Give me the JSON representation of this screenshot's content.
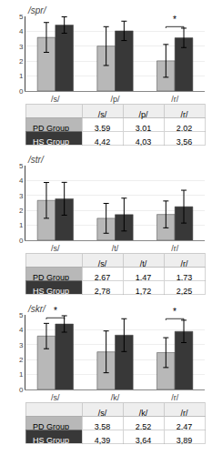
{
  "chart_data": [
    {
      "type": "bar",
      "title": "/spr/",
      "categories": [
        "/s/",
        "/p/",
        "/r/"
      ],
      "series": [
        {
          "name": "PD Group",
          "color": "#b8b8b8",
          "values": [
            3.59,
            3.01,
            2.02
          ],
          "errors": [
            1.0,
            1.3,
            1.1
          ],
          "value_labels": [
            "3,59",
            "3,01",
            "2,02"
          ]
        },
        {
          "name": "HS Group",
          "color": "#383838",
          "values": [
            4.42,
            4.03,
            3.56
          ],
          "errors": [
            0.55,
            0.65,
            0.65
          ],
          "value_labels": [
            "4,42",
            "4,03",
            "3,56"
          ]
        }
      ],
      "annotations": [
        {
          "category": "/r/",
          "text": "*"
        }
      ],
      "ylim": [
        0,
        5
      ],
      "yticks": [
        0,
        1,
        2,
        3,
        4,
        5
      ],
      "grid": true
    },
    {
      "type": "bar",
      "title": "/str/",
      "categories": [
        "/s/",
        "/t/",
        "/r/"
      ],
      "series": [
        {
          "name": "PD Group",
          "color": "#b8b8b8",
          "values": [
            2.67,
            1.47,
            1.73
          ],
          "errors": [
            1.2,
            1.0,
            0.9
          ],
          "value_labels": [
            "2,67",
            "1,47",
            "1,73"
          ]
        },
        {
          "name": "HS Group",
          "color": "#383838",
          "values": [
            2.78,
            1.72,
            2.25
          ],
          "errors": [
            1.1,
            1.1,
            1.1
          ],
          "value_labels": [
            "2,78",
            "1,72",
            "2,25"
          ]
        }
      ],
      "annotations": [],
      "ylim": [
        0,
        5
      ],
      "yticks": [
        0,
        1,
        2,
        3,
        4,
        5
      ],
      "grid": true
    },
    {
      "type": "bar",
      "title": "/skr/",
      "categories": [
        "/s/",
        "/k/",
        "/r/"
      ],
      "series": [
        {
          "name": "PD Group",
          "color": "#b8b8b8",
          "values": [
            3.58,
            2.52,
            2.47
          ],
          "errors": [
            0.85,
            1.4,
            1.0
          ],
          "value_labels": [
            "3,58",
            "2,52",
            "2,47"
          ]
        },
        {
          "name": "HS Group",
          "color": "#383838",
          "values": [
            4.39,
            3.64,
            3.89
          ],
          "errors": [
            0.55,
            1.1,
            0.75
          ],
          "value_labels": [
            "4,39",
            "3,64",
            "3,89"
          ]
        }
      ],
      "annotations": [
        {
          "category": "/s/",
          "text": "*"
        },
        {
          "category": "/r/",
          "text": "*"
        }
      ],
      "ylim": [
        0,
        5
      ],
      "yticks": [
        0,
        1,
        2,
        3,
        4,
        5
      ],
      "grid": true
    }
  ]
}
